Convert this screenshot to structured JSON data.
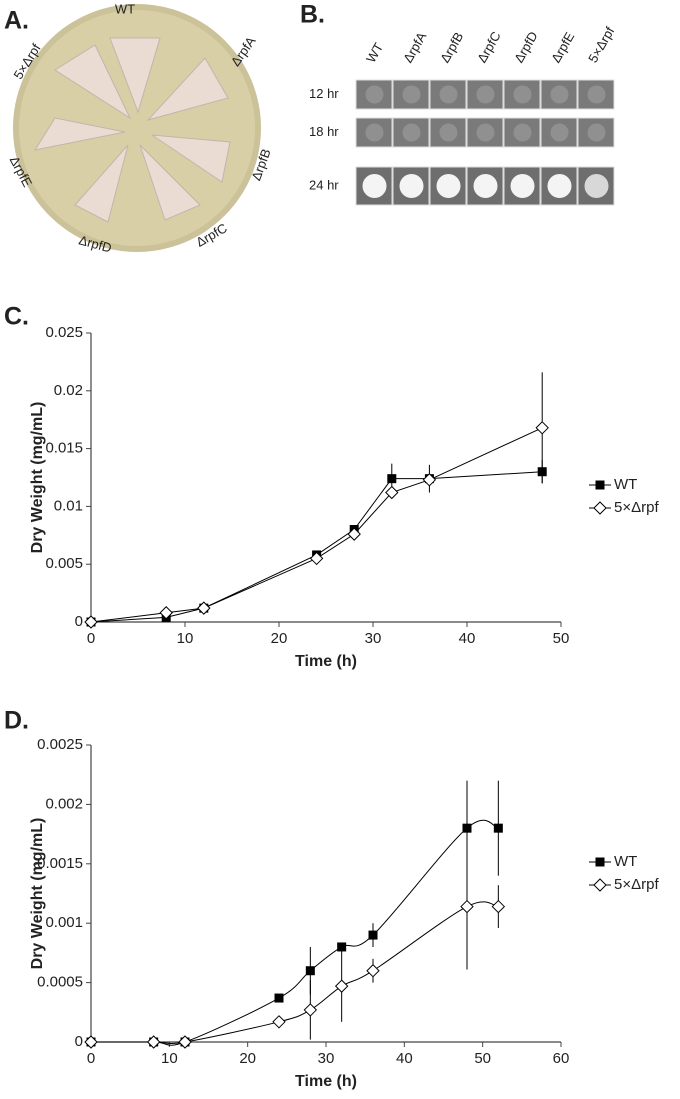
{
  "panel_a": {
    "label": "A.",
    "strains": [
      "WT",
      "ΔrpfA",
      "ΔrpfB",
      "ΔrpfC",
      "ΔrpfD",
      "ΔrpfE",
      "5×Δrpf"
    ]
  },
  "panel_b": {
    "label": "B.",
    "columns": [
      "WT",
      "ΔrpfA",
      "ΔrpfB",
      "ΔrpfC",
      "ΔrpfD",
      "ΔrpfE",
      "5×Δrpf"
    ],
    "rows": [
      "12 hr",
      "18 hr",
      "24 hr"
    ]
  },
  "chart_data": [
    {
      "type": "line",
      "panel_label": "C.",
      "x_label": "Time (h)",
      "y_label": "Dry Weight (mg/mL)",
      "xlim": [
        0,
        50
      ],
      "xticks": [
        0,
        10,
        20,
        30,
        40,
        50
      ],
      "ylim": [
        0,
        0.025
      ],
      "yticks": [
        0,
        0.005,
        0.01,
        0.015,
        0.02,
        0.025
      ],
      "smooth": false,
      "series": [
        {
          "name": "WT",
          "color": "#000000",
          "marker": "square",
          "x": [
            0,
            8,
            12,
            24,
            28,
            32,
            36,
            48
          ],
          "values": [
            0,
            0.0004,
            0.0012,
            0.0058,
            0.008,
            0.0124,
            0.0124,
            0.013
          ],
          "errors": [
            null,
            null,
            null,
            null,
            null,
            0.0013,
            0.0012,
            0.001
          ]
        },
        {
          "name": "5×Δrpf",
          "color": "#000000",
          "marker": "diamond",
          "x": [
            0,
            8,
            12,
            24,
            28,
            32,
            36,
            48
          ],
          "values": [
            0,
            0.0008,
            0.0012,
            0.0055,
            0.0076,
            0.0112,
            0.0123,
            0.0168
          ],
          "errors": [
            null,
            null,
            null,
            null,
            null,
            null,
            null,
            0.0048
          ]
        }
      ]
    },
    {
      "type": "line",
      "panel_label": "D.",
      "x_label": "Time (h)",
      "y_label": "Dry Weight (mg/mL)",
      "xlim": [
        0,
        60
      ],
      "xticks": [
        0,
        10,
        20,
        30,
        40,
        50,
        60
      ],
      "ylim": [
        0,
        0.0025
      ],
      "yticks": [
        0,
        0.0005,
        0.001,
        0.0015,
        0.002,
        0.0025
      ],
      "smooth": true,
      "series": [
        {
          "name": "WT",
          "color": "#000000",
          "marker": "square",
          "x": [
            0,
            8,
            12,
            24,
            28,
            32,
            36,
            48,
            52
          ],
          "values": [
            0,
            0,
            0,
            0.00037,
            0.0006,
            0.0008,
            0.0009,
            0.0018,
            0.0018
          ],
          "errors": [
            null,
            null,
            null,
            null,
            0.0002,
            null,
            0.0001,
            0.0004,
            0.0004
          ]
        },
        {
          "name": "5×Δrpf",
          "color": "#000000",
          "marker": "diamond",
          "x": [
            0,
            8,
            12,
            24,
            28,
            32,
            36,
            48,
            52
          ],
          "values": [
            0,
            0,
            0,
            0.00017,
            0.00027,
            0.00047,
            0.0006,
            0.00114,
            0.00114
          ],
          "errors": [
            null,
            null,
            null,
            null,
            0.00025,
            0.0003,
            0.0001,
            0.00053,
            0.00018
          ]
        }
      ]
    }
  ]
}
